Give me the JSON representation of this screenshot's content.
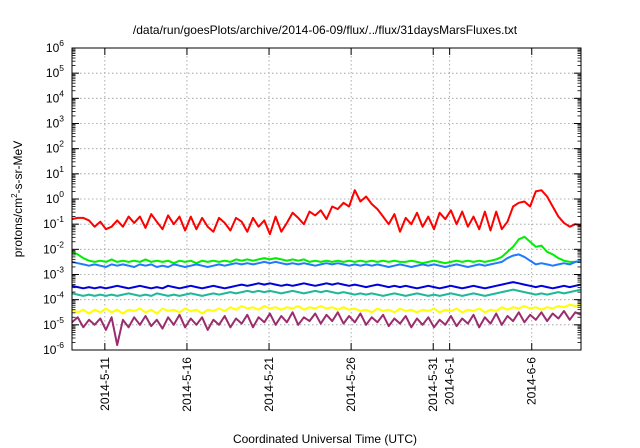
{
  "chart_data": {
    "type": "line",
    "title": "/data/run/goesPlots/archive/2014-06-09/flux/../flux/31daysMarsFluxes.txt",
    "xlabel": "Coordinated Universal Time (UTC)",
    "ylabel": {
      "prefix": "protons/cm",
      "sup": "2",
      "suffix": "-s-sr-MeV"
    },
    "y_scale": "log",
    "ylim_exponents": [
      -6,
      6
    ],
    "y_ticks": [
      {
        "base": "10",
        "exp": "-6"
      },
      {
        "base": "10",
        "exp": "-5"
      },
      {
        "base": "10",
        "exp": "-4"
      },
      {
        "base": "10",
        "exp": "-3"
      },
      {
        "base": "10",
        "exp": "-2"
      },
      {
        "base": "10",
        "exp": "-1"
      },
      {
        "base": "10",
        "exp": "0"
      },
      {
        "base": "10",
        "exp": "1"
      },
      {
        "base": "10",
        "exp": "2"
      },
      {
        "base": "10",
        "exp": "3"
      },
      {
        "base": "10",
        "exp": "4"
      },
      {
        "base": "10",
        "exp": "5"
      },
      {
        "base": "10",
        "exp": "6"
      }
    ],
    "xlim": [
      "2014-05-09",
      "2014-06-09"
    ],
    "x_ticks": [
      {
        "date": "2014-05-11",
        "label": "2014-5-11"
      },
      {
        "date": "2014-05-16",
        "label": "2014-5-16"
      },
      {
        "date": "2014-05-21",
        "label": "2014-5-21"
      },
      {
        "date": "2014-05-26",
        "label": "2014-5-26"
      },
      {
        "date": "2014-05-31",
        "label": "2014-5-31"
      },
      {
        "date": "2014-06-01",
        "label": "2014-6-1"
      },
      {
        "date": "2014-06-06",
        "label": "2014-6-6"
      }
    ],
    "grid": true,
    "legend": "none",
    "series": [
      {
        "color": "#ff0000",
        "log10_values": [
          -0.8,
          -0.75,
          -0.75,
          -0.85,
          -1.1,
          -0.9,
          -1.2,
          -1.1,
          -0.85,
          -1.1,
          -0.7,
          -0.95,
          -0.7,
          -1.15,
          -0.6,
          -0.9,
          -1.2,
          -0.65,
          -1.0,
          -0.7,
          -1.25,
          -0.7,
          -1.2,
          -0.75,
          -1.1,
          -1.3,
          -0.75,
          -0.95,
          -1.25,
          -0.75,
          -0.9,
          -1.3,
          -0.75,
          -1.1,
          -0.85,
          -1.4,
          -0.7,
          -1.3,
          -0.95,
          -0.55,
          -0.75,
          -1.0,
          -0.5,
          -0.65,
          -0.45,
          -0.8,
          -0.3,
          -0.4,
          -0.15,
          -0.3,
          0.35,
          -0.1,
          0.1,
          -0.2,
          -0.4,
          -0.7,
          -1.0,
          -0.6,
          -1.3,
          -0.75,
          -1.0,
          -0.55,
          -1.1,
          -0.7,
          -1.2,
          -0.55,
          -0.8,
          -0.45,
          -1.0,
          -0.5,
          -1.1,
          -0.7,
          -1.2,
          -0.5,
          -1.25,
          -0.5,
          -1.2,
          -0.9,
          -0.3,
          -0.15,
          -0.1,
          -0.3,
          0.3,
          0.35,
          0.1,
          -0.3,
          -0.7,
          -0.95,
          -1.1,
          -1.0,
          -1.05
        ]
      },
      {
        "color": "#00ee00",
        "log10_values": [
          -2.1,
          -2.2,
          -2.35,
          -2.45,
          -2.5,
          -2.45,
          -2.5,
          -2.4,
          -2.5,
          -2.45,
          -2.5,
          -2.45,
          -2.5,
          -2.4,
          -2.5,
          -2.45,
          -2.5,
          -2.45,
          -2.55,
          -2.45,
          -2.5,
          -2.45,
          -2.55,
          -2.45,
          -2.5,
          -2.45,
          -2.5,
          -2.45,
          -2.5,
          -2.4,
          -2.45,
          -2.4,
          -2.45,
          -2.4,
          -2.35,
          -2.4,
          -2.35,
          -2.4,
          -2.45,
          -2.4,
          -2.45,
          -2.4,
          -2.5,
          -2.45,
          -2.5,
          -2.45,
          -2.5,
          -2.45,
          -2.5,
          -2.45,
          -2.5,
          -2.45,
          -2.5,
          -2.45,
          -2.5,
          -2.45,
          -2.5,
          -2.45,
          -2.5,
          -2.5,
          -2.45,
          -2.5,
          -2.55,
          -2.5,
          -2.45,
          -2.5,
          -2.55,
          -2.5,
          -2.45,
          -2.5,
          -2.45,
          -2.5,
          -2.45,
          -2.5,
          -2.45,
          -2.4,
          -2.3,
          -2.1,
          -1.9,
          -1.6,
          -1.5,
          -1.7,
          -1.9,
          -1.85,
          -2.1,
          -2.2,
          -2.35,
          -2.45,
          -2.5,
          -2.5,
          -2.45
        ]
      },
      {
        "color": "#1e7bff",
        "log10_values": [
          -2.5,
          -2.55,
          -2.6,
          -2.65,
          -2.6,
          -2.65,
          -2.7,
          -2.6,
          -2.65,
          -2.6,
          -2.65,
          -2.7,
          -2.6,
          -2.65,
          -2.6,
          -2.7,
          -2.65,
          -2.7,
          -2.6,
          -2.65,
          -2.7,
          -2.65,
          -2.6,
          -2.65,
          -2.7,
          -2.65,
          -2.6,
          -2.65,
          -2.6,
          -2.55,
          -2.6,
          -2.55,
          -2.6,
          -2.55,
          -2.5,
          -2.55,
          -2.5,
          -2.55,
          -2.6,
          -2.55,
          -2.6,
          -2.55,
          -2.6,
          -2.65,
          -2.6,
          -2.55,
          -2.6,
          -2.55,
          -2.6,
          -2.65,
          -2.6,
          -2.65,
          -2.6,
          -2.65,
          -2.6,
          -2.65,
          -2.7,
          -2.65,
          -2.6,
          -2.65,
          -2.7,
          -2.65,
          -2.6,
          -2.65,
          -2.6,
          -2.65,
          -2.7,
          -2.65,
          -2.6,
          -2.65,
          -2.7,
          -2.65,
          -2.6,
          -2.65,
          -2.6,
          -2.55,
          -2.5,
          -2.35,
          -2.25,
          -2.2,
          -2.3,
          -2.45,
          -2.6,
          -2.55,
          -2.6,
          -2.65,
          -2.6,
          -2.55,
          -2.6,
          -2.5,
          -2.45
        ]
      },
      {
        "color": "#0000dd",
        "log10_values": [
          -3.45,
          -3.5,
          -3.55,
          -3.5,
          -3.55,
          -3.5,
          -3.55,
          -3.5,
          -3.45,
          -3.5,
          -3.55,
          -3.5,
          -3.45,
          -3.5,
          -3.55,
          -3.5,
          -3.55,
          -3.45,
          -3.5,
          -3.55,
          -3.5,
          -3.45,
          -3.5,
          -3.55,
          -3.5,
          -3.45,
          -3.5,
          -3.55,
          -3.5,
          -3.45,
          -3.4,
          -3.45,
          -3.4,
          -3.35,
          -3.4,
          -3.35,
          -3.4,
          -3.45,
          -3.4,
          -3.45,
          -3.4,
          -3.35,
          -3.4,
          -3.45,
          -3.4,
          -3.35,
          -3.4,
          -3.35,
          -3.4,
          -3.45,
          -3.4,
          -3.45,
          -3.5,
          -3.45,
          -3.4,
          -3.45,
          -3.5,
          -3.45,
          -3.5,
          -3.45,
          -3.5,
          -3.55,
          -3.5,
          -3.45,
          -3.5,
          -3.55,
          -3.5,
          -3.45,
          -3.5,
          -3.55,
          -3.5,
          -3.45,
          -3.5,
          -3.55,
          -3.5,
          -3.45,
          -3.4,
          -3.35,
          -3.3,
          -3.35,
          -3.4,
          -3.45,
          -3.5,
          -3.45,
          -3.5,
          -3.55,
          -3.5,
          -3.45,
          -3.5,
          -3.45,
          -3.4
        ]
      },
      {
        "color": "#20b89a",
        "log10_values": [
          -3.75,
          -3.8,
          -3.85,
          -3.8,
          -3.85,
          -3.8,
          -3.85,
          -3.8,
          -3.85,
          -3.8,
          -3.75,
          -3.8,
          -3.85,
          -3.8,
          -3.85,
          -3.75,
          -3.8,
          -3.85,
          -3.8,
          -3.85,
          -3.8,
          -3.75,
          -3.8,
          -3.85,
          -3.8,
          -3.75,
          -3.8,
          -3.75,
          -3.7,
          -3.75,
          -3.7,
          -3.65,
          -3.7,
          -3.65,
          -3.7,
          -3.65,
          -3.7,
          -3.75,
          -3.7,
          -3.65,
          -3.7,
          -3.75,
          -3.7,
          -3.65,
          -3.7,
          -3.65,
          -3.7,
          -3.75,
          -3.7,
          -3.75,
          -3.8,
          -3.75,
          -3.8,
          -3.75,
          -3.8,
          -3.85,
          -3.8,
          -3.75,
          -3.8,
          -3.85,
          -3.8,
          -3.75,
          -3.8,
          -3.85,
          -3.8,
          -3.85,
          -3.8,
          -3.75,
          -3.8,
          -3.85,
          -3.8,
          -3.75,
          -3.8,
          -3.85,
          -3.8,
          -3.75,
          -3.7,
          -3.65,
          -3.6,
          -3.65,
          -3.7,
          -3.75,
          -3.8,
          -3.75,
          -3.8,
          -3.75,
          -3.7,
          -3.75,
          -3.7,
          -3.65,
          -3.6
        ]
      },
      {
        "color": "#ffff00",
        "log10_values": [
          -4.4,
          -4.5,
          -4.4,
          -4.55,
          -4.4,
          -4.5,
          -4.35,
          -4.5,
          -4.4,
          -4.55,
          -4.4,
          -4.45,
          -4.35,
          -4.5,
          -4.4,
          -4.55,
          -4.35,
          -4.45,
          -4.4,
          -4.5,
          -4.35,
          -4.45,
          -4.4,
          -4.55,
          -4.4,
          -4.45,
          -4.35,
          -4.45,
          -4.3,
          -4.4,
          -4.25,
          -4.35,
          -4.3,
          -4.4,
          -4.25,
          -4.35,
          -4.3,
          -4.4,
          -4.3,
          -4.35,
          -4.25,
          -4.4,
          -4.3,
          -4.35,
          -4.25,
          -4.35,
          -4.3,
          -4.4,
          -4.3,
          -4.4,
          -4.35,
          -4.45,
          -4.4,
          -4.5,
          -4.35,
          -4.45,
          -4.4,
          -4.5,
          -4.35,
          -4.45,
          -4.4,
          -4.5,
          -4.4,
          -4.45,
          -4.35,
          -4.5,
          -4.4,
          -4.45,
          -4.35,
          -4.5,
          -4.4,
          -4.45,
          -4.35,
          -4.5,
          -4.4,
          -4.45,
          -4.3,
          -4.4,
          -4.3,
          -4.35,
          -4.25,
          -4.35,
          -4.3,
          -4.4,
          -4.3,
          -4.35,
          -4.25,
          -4.3,
          -4.2,
          -4.25,
          -4.2
        ]
      },
      {
        "color": "#9b2d6e",
        "log10_values": [
          -4.9,
          -4.7,
          -5.1,
          -4.8,
          -5.0,
          -4.75,
          -5.2,
          -4.7,
          -5.8,
          -4.8,
          -5.1,
          -4.7,
          -5.0,
          -4.65,
          -5.05,
          -4.8,
          -5.15,
          -4.7,
          -5.0,
          -4.6,
          -5.1,
          -4.75,
          -5.0,
          -4.7,
          -5.2,
          -4.8,
          -5.0,
          -4.65,
          -5.1,
          -4.75,
          -4.95,
          -4.6,
          -5.1,
          -4.7,
          -4.9,
          -4.55,
          -5.0,
          -4.65,
          -4.9,
          -4.5,
          -5.0,
          -4.7,
          -4.85,
          -4.55,
          -4.95,
          -4.6,
          -4.85,
          -4.5,
          -4.95,
          -4.65,
          -4.9,
          -4.55,
          -5.0,
          -4.7,
          -4.9,
          -4.6,
          -5.05,
          -4.75,
          -4.95,
          -4.65,
          -5.1,
          -4.75,
          -5.0,
          -4.7,
          -5.1,
          -4.8,
          -5.0,
          -4.65,
          -5.05,
          -4.75,
          -4.95,
          -4.6,
          -5.1,
          -4.7,
          -4.95,
          -4.55,
          -5.0,
          -4.65,
          -4.85,
          -4.5,
          -4.9,
          -4.6,
          -4.8,
          -4.5,
          -4.85,
          -4.55,
          -4.75,
          -4.45,
          -4.8,
          -4.5,
          -4.6
        ]
      }
    ]
  }
}
